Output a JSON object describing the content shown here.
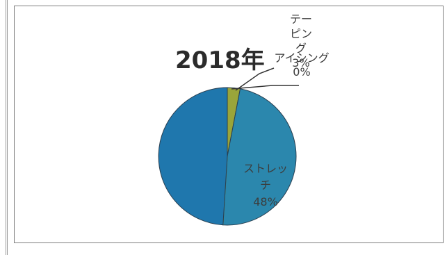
{
  "chart_data": {
    "type": "pie",
    "title": "2018年",
    "slices": [
      {
        "label_lines": [
          "テー",
          "ピン",
          "グ"
        ],
        "value_text": "3%",
        "value": 3,
        "color": "#9aa53a"
      },
      {
        "label_lines": [
          "ストレッ",
          "チ"
        ],
        "value_text": "48%",
        "value": 48,
        "color": "#2b87ad"
      },
      {
        "label_lines": [
          "アイシング"
        ],
        "value_text": "0%",
        "value": 0,
        "color": "#8fa83c"
      },
      {
        "label_lines": [],
        "value_text": "",
        "value": 49,
        "color": "#1f77ad"
      }
    ],
    "legend": "none"
  }
}
